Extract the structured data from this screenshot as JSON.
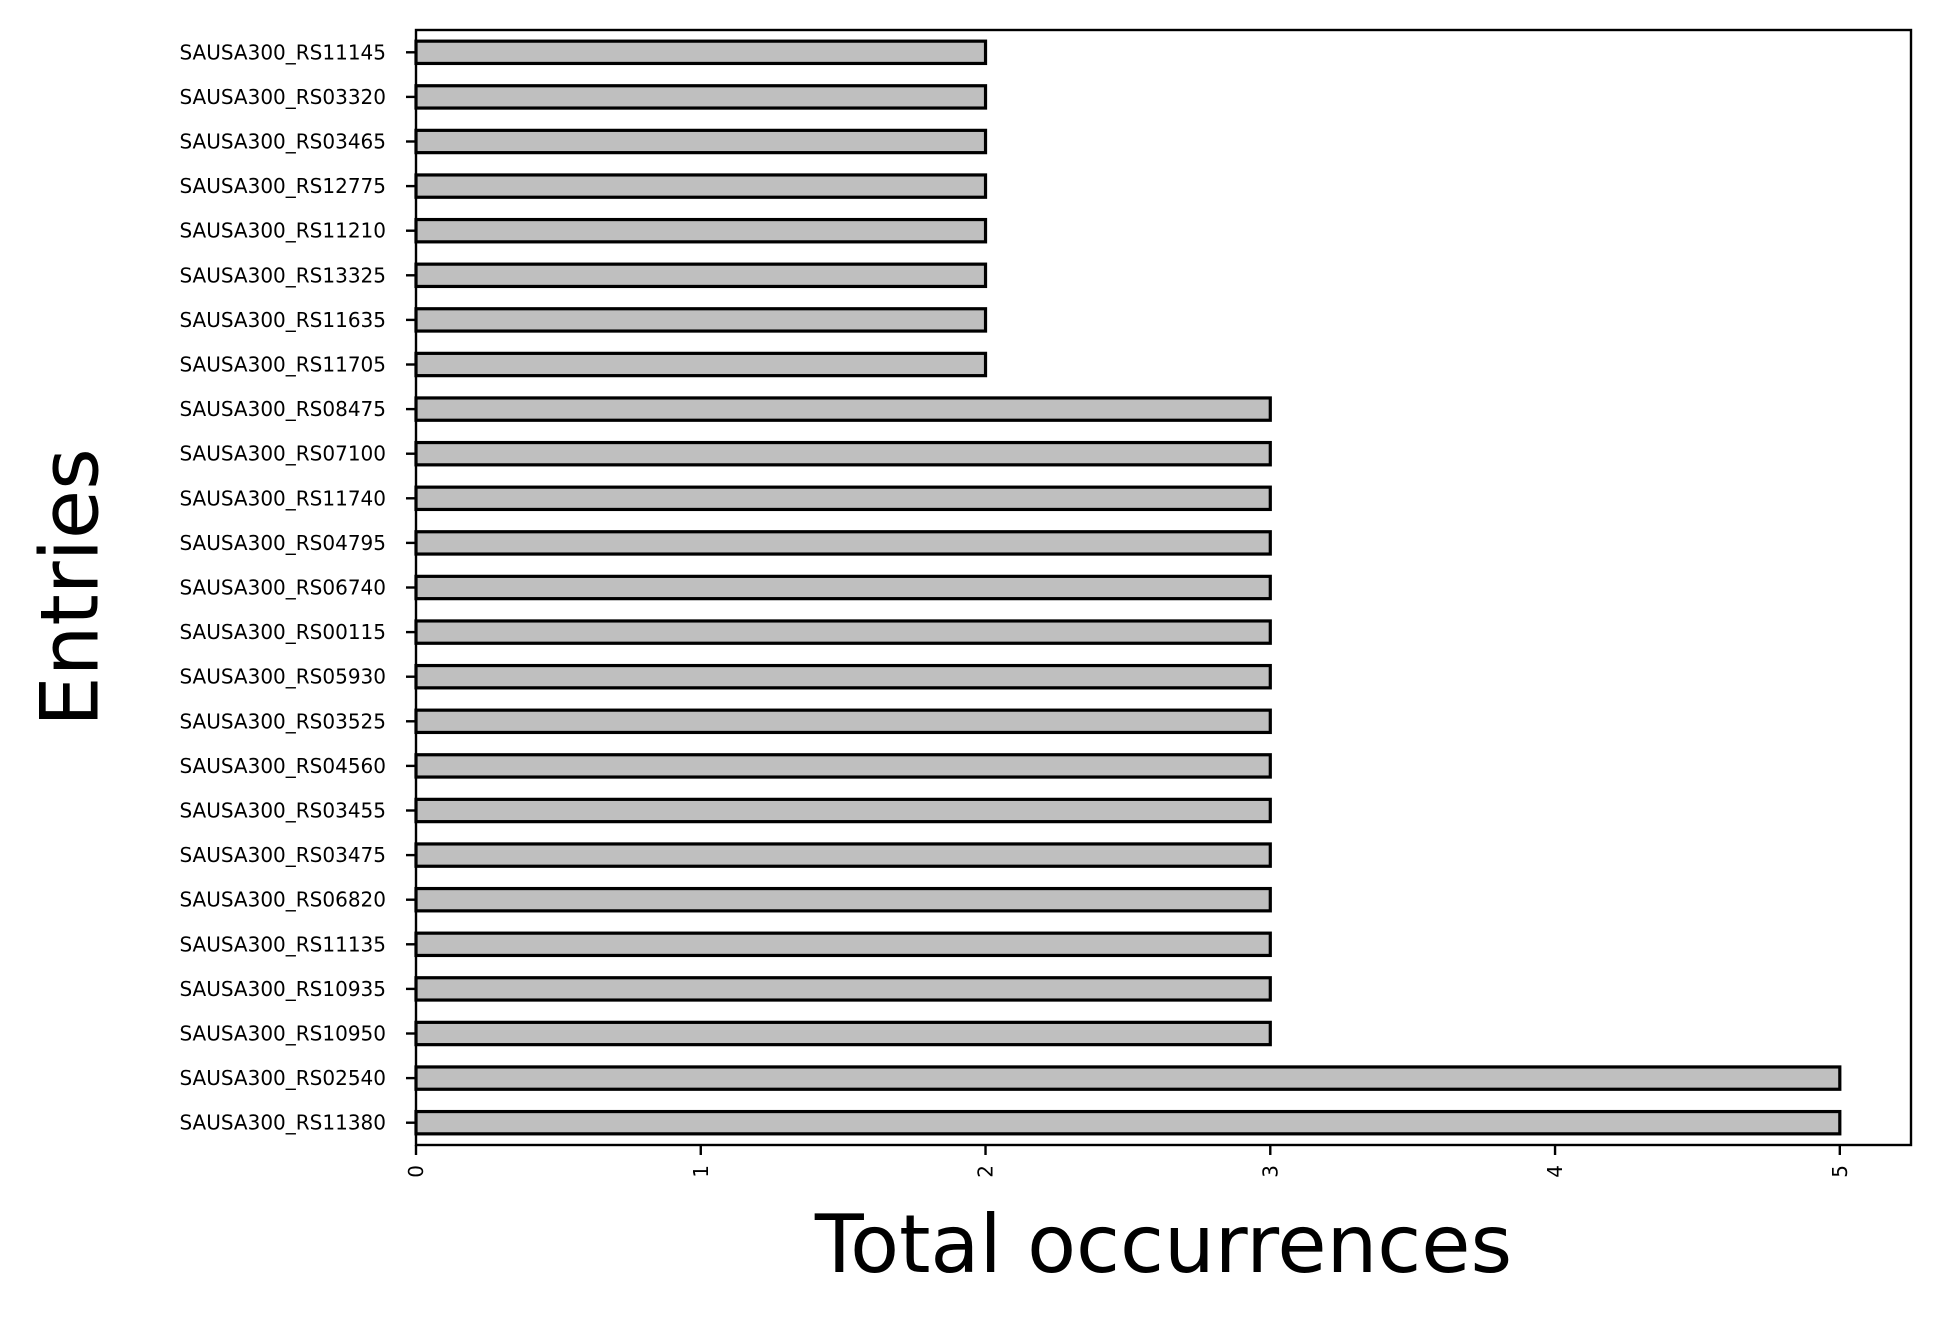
{
  "chart_data": {
    "type": "bar",
    "orientation": "horizontal",
    "xlabel": "Total occurrences",
    "ylabel": "Entries",
    "xlim": [
      0,
      5.25
    ],
    "xticks": [
      0,
      1,
      2,
      3,
      4,
      5
    ],
    "grid": false,
    "bar_color": "#bfbfbf",
    "edge_color": "#000000",
    "categories": [
      "SAUSA300_RS11145",
      "SAUSA300_RS03320",
      "SAUSA300_RS03465",
      "SAUSA300_RS12775",
      "SAUSA300_RS11210",
      "SAUSA300_RS13325",
      "SAUSA300_RS11635",
      "SAUSA300_RS11705",
      "SAUSA300_RS08475",
      "SAUSA300_RS07100",
      "SAUSA300_RS11740",
      "SAUSA300_RS04795",
      "SAUSA300_RS06740",
      "SAUSA300_RS00115",
      "SAUSA300_RS05930",
      "SAUSA300_RS03525",
      "SAUSA300_RS04560",
      "SAUSA300_RS03455",
      "SAUSA300_RS03475",
      "SAUSA300_RS06820",
      "SAUSA300_RS11135",
      "SAUSA300_RS10935",
      "SAUSA300_RS10950",
      "SAUSA300_RS02540",
      "SAUSA300_RS11380"
    ],
    "values": [
      2,
      2,
      2,
      2,
      2,
      2,
      2,
      2,
      3,
      3,
      3,
      3,
      3,
      3,
      3,
      3,
      3,
      3,
      3,
      3,
      3,
      3,
      3,
      5,
      5
    ]
  }
}
